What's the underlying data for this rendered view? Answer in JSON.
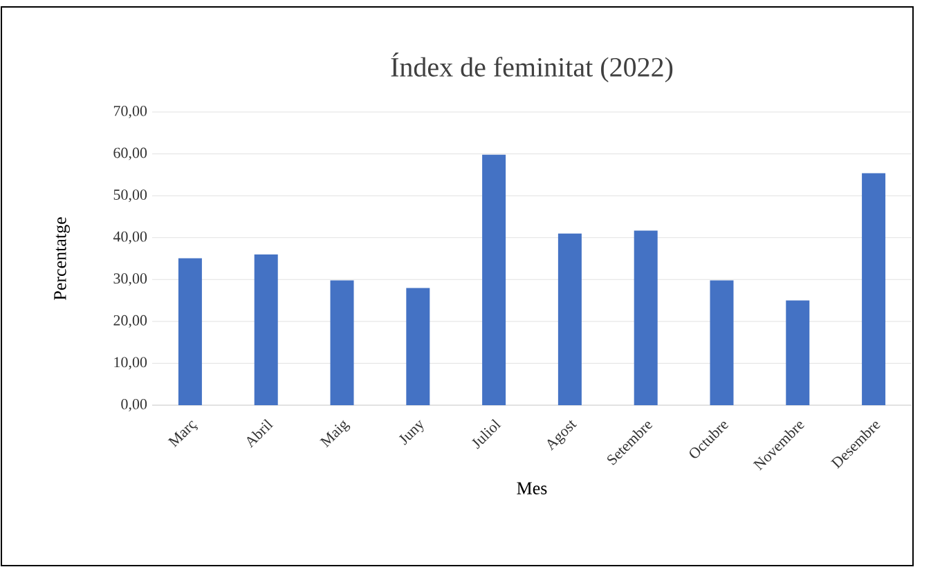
{
  "chart_data": {
    "type": "bar",
    "title": "Índex de feminitat (2022)",
    "xlabel": "Mes",
    "ylabel": "Percentatge",
    "categories": [
      "Març",
      "Abril",
      "Maig",
      "Juny",
      "Juliol",
      "Agost",
      "Setembre",
      "Octubre",
      "Novembre",
      "Desembre"
    ],
    "values": [
      35.1,
      36.0,
      29.8,
      28.0,
      59.8,
      41.0,
      41.7,
      29.8,
      25.0,
      55.4
    ],
    "color": "#4472c4",
    "ylim": [
      0,
      70
    ],
    "yticks": [
      {
        "value": 0,
        "label": "0,00"
      },
      {
        "value": 10,
        "label": "10,00"
      },
      {
        "value": 20,
        "label": "20,00"
      },
      {
        "value": 30,
        "label": "30,00"
      },
      {
        "value": 40,
        "label": "40,00"
      },
      {
        "value": 50,
        "label": "50,00"
      },
      {
        "value": 60,
        "label": "60,00"
      },
      {
        "value": 70,
        "label": "70,00"
      }
    ],
    "grid": "y"
  }
}
